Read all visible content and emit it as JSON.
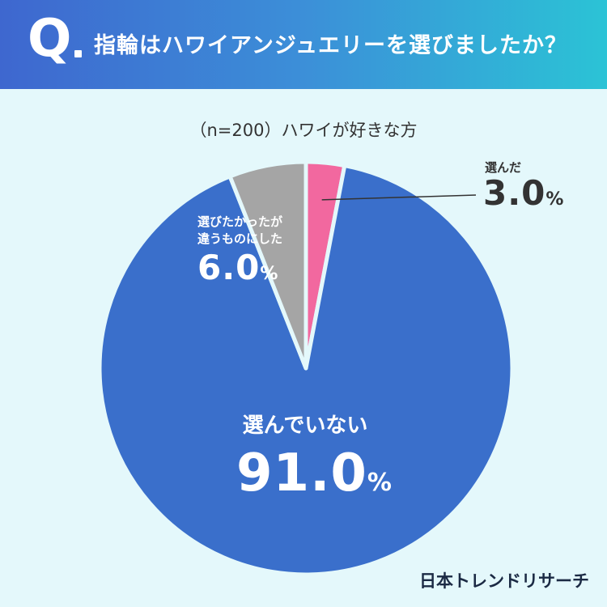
{
  "header": {
    "q_mark": "Q",
    "question": "指輪はハワイアンジュエリーを選びましたか？"
  },
  "sample_note": "（n=200）ハワイが好きな方",
  "chart_data": {
    "type": "pie",
    "title": "",
    "slices": [
      {
        "label": "選んだ",
        "value": 3.0,
        "display": "3.0",
        "color": "#f2689f"
      },
      {
        "label": "選んでいない",
        "value": 91.0,
        "display": "91.0",
        "color": "#3a6fcb"
      },
      {
        "label": "選びたかったが違うものにした",
        "value": 6.0,
        "display": "6.0",
        "color": "#a5a5a5"
      }
    ],
    "unit": "%",
    "start": "12 o'clock",
    "direction": "clockwise"
  },
  "labels": {
    "chose": {
      "name": "選んだ",
      "value": "3.0",
      "unit": "%"
    },
    "not_chosen": {
      "name": "選んでいない",
      "value": "91.0",
      "unit": "%"
    },
    "other": {
      "name_line1": "選びたかったが",
      "name_line2": "違うものにした",
      "value": "6.0",
      "unit": "%"
    }
  },
  "brand": "日本トレンドリサーチ"
}
